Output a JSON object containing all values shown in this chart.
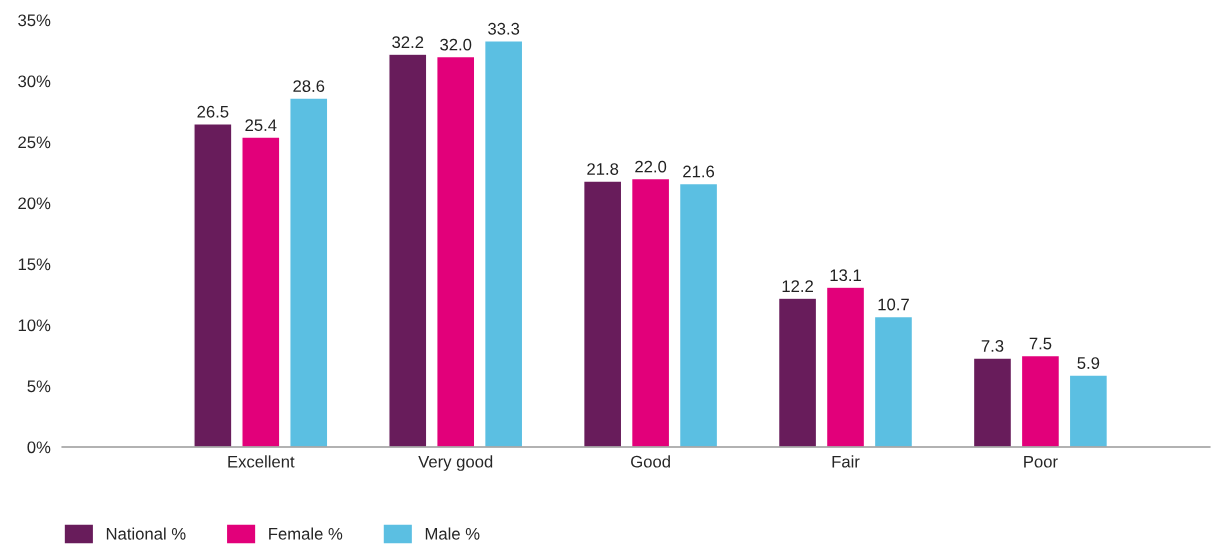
{
  "chart_data": {
    "type": "bar",
    "categories": [
      "Excellent",
      "Very good",
      "Good",
      "Fair",
      "Poor"
    ],
    "series": [
      {
        "name": "National %",
        "color": "#681c5b",
        "values": [
          26.5,
          32.2,
          21.8,
          12.2,
          7.3
        ],
        "value_labels": [
          "26.5",
          "32.2",
          "21.8",
          "12.2",
          "7.3"
        ]
      },
      {
        "name": "Female %",
        "color": "#e2007a",
        "values": [
          25.4,
          32.0,
          22.0,
          13.1,
          7.5
        ],
        "value_labels": [
          "25.4",
          "32.0",
          "22.0",
          "13.1",
          "7.5"
        ]
      },
      {
        "name": "Male %",
        "color": "#5bbfe2",
        "values": [
          28.6,
          33.3,
          21.6,
          10.7,
          5.9
        ],
        "value_labels": [
          "28.6",
          "33.3",
          "21.6",
          "10.7",
          "5.9"
        ]
      }
    ],
    "ylim": [
      0,
      35
    ],
    "yticks": [
      {
        "value": 0,
        "label": "0%"
      },
      {
        "value": 5,
        "label": "5%"
      },
      {
        "value": 10,
        "label": "10%"
      },
      {
        "value": 15,
        "label": "15%"
      },
      {
        "value": 20,
        "label": "20%"
      },
      {
        "value": 25,
        "label": "25%"
      },
      {
        "value": 30,
        "label": "30%"
      },
      {
        "value": 35,
        "label": "35%"
      }
    ],
    "grid": false,
    "legend": "bottom left"
  }
}
